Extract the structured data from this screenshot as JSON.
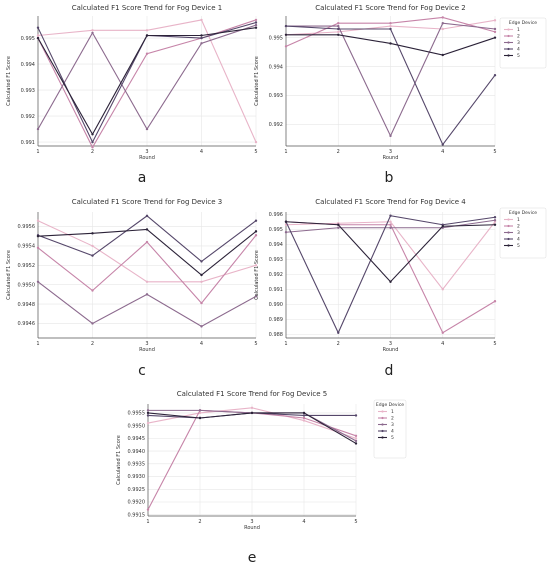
{
  "chart_data": [
    {
      "type": "line",
      "letter": "a",
      "title": "Calculated F1 Score Trend for Fog Device 1",
      "xlabel": "Round",
      "ylabel": "Calculated F1 Score",
      "x": [
        1,
        2,
        3,
        4,
        5
      ],
      "ylim": [
        0.99085,
        0.99585
      ],
      "yticks": [
        "0.991",
        "0.992",
        "0.993",
        "0.994",
        "0.995"
      ],
      "yticks_values": [
        0.991,
        0.992,
        0.993,
        0.994,
        0.995
      ],
      "grid": true,
      "legend": null,
      "series": [
        {
          "values": [
            0.9951,
            0.9953,
            0.9953,
            0.9957,
            0.991
          ],
          "color": "#e8b4c8"
        },
        {
          "values": [
            0.995,
            0.9908,
            0.9944,
            0.995,
            0.9957
          ],
          "color": "#c684a8"
        },
        {
          "values": [
            0.9915,
            0.9952,
            0.9915,
            0.9948,
            0.9955
          ],
          "color": "#8c6a8e"
        },
        {
          "values": [
            0.9954,
            0.991,
            0.9951,
            0.995,
            0.9956
          ],
          "color": "#55476a"
        },
        {
          "values": [
            0.995,
            0.9913,
            0.9951,
            0.9951,
            0.9954
          ],
          "color": "#2b2238"
        }
      ]
    },
    {
      "type": "line",
      "letter": "b",
      "title": "Calculated F1 Score Trend for Fog Device 2",
      "xlabel": "Round",
      "ylabel": "Calculated F1 Score",
      "x": [
        1,
        2,
        3,
        4,
        5
      ],
      "ylim": [
        0.99125,
        0.99575
      ],
      "yticks": [
        "0.992",
        "0.993",
        "0.994",
        "0.995"
      ],
      "yticks_values": [
        0.992,
        0.993,
        0.994,
        0.995
      ],
      "grid": true,
      "legend": {
        "title": "Edge Device",
        "entries": [
          "1",
          "2",
          "3",
          "4",
          "5"
        ],
        "position": "outside-right"
      },
      "series": [
        {
          "name": "1",
          "values": [
            0.9951,
            0.9952,
            0.9954,
            0.9953,
            0.9956
          ],
          "color": "#e8b4c8"
        },
        {
          "name": "2",
          "values": [
            0.9947,
            0.9955,
            0.9955,
            0.9957,
            0.9952
          ],
          "color": "#c684a8"
        },
        {
          "name": "3",
          "values": [
            0.9954,
            0.9954,
            0.9916,
            0.9955,
            0.9953
          ],
          "color": "#8c6a8e"
        },
        {
          "name": "4",
          "values": [
            0.9954,
            0.9953,
            0.9953,
            0.9913,
            0.9937
          ],
          "color": "#55476a"
        },
        {
          "name": "5",
          "values": [
            0.9951,
            0.9951,
            0.9948,
            0.9944,
            0.995
          ],
          "color": "#2b2238"
        }
      ]
    },
    {
      "type": "line",
      "letter": "c",
      "title": "Calculated F1 Score Trend for Fog Device 3",
      "xlabel": "Round",
      "ylabel": "Calculated F1 Score",
      "x": [
        1,
        2,
        3,
        4,
        5
      ],
      "ylim": [
        0.99445,
        0.99575
      ],
      "yticks": [
        "0.9946",
        "0.9948",
        "0.9950",
        "0.9952",
        "0.9954",
        "0.9956"
      ],
      "yticks_values": [
        0.9946,
        0.9948,
        0.995,
        0.9952,
        0.9954,
        0.9956
      ],
      "grid": true,
      "legend": null,
      "series": [
        {
          "values": [
            0.99566,
            0.9954,
            0.99503,
            0.99503,
            0.9952
          ],
          "color": "#e8b4c8"
        },
        {
          "values": [
            0.99538,
            0.99494,
            0.99544,
            0.99481,
            0.99551
          ],
          "color": "#c684a8"
        },
        {
          "values": [
            0.99503,
            0.9946,
            0.9949,
            0.99457,
            0.99488
          ],
          "color": "#8c6a8e"
        },
        {
          "values": [
            0.99551,
            0.9953,
            0.99571,
            0.99524,
            0.99566
          ],
          "color": "#55476a"
        },
        {
          "values": [
            0.9955,
            0.99553,
            0.99557,
            0.9951,
            0.99555
          ],
          "color": "#2b2238"
        }
      ]
    },
    {
      "type": "line",
      "letter": "d",
      "title": "Calculated F1 Score Trend for Fog Device 4",
      "xlabel": "Round",
      "ylabel": "Calculated F1 Score",
      "x": [
        1,
        2,
        3,
        4,
        5
      ],
      "ylim": [
        0.98775,
        0.99615
      ],
      "yticks": [
        "0.988",
        "0.989",
        "0.990",
        "0.991",
        "0.992",
        "0.993",
        "0.994",
        "0.995",
        "0.996"
      ],
      "yticks_values": [
        0.988,
        0.989,
        0.99,
        0.991,
        0.992,
        0.993,
        0.994,
        0.995,
        0.996
      ],
      "grid": true,
      "legend": {
        "title": "Edge Device",
        "entries": [
          "1",
          "2",
          "3",
          "4",
          "5"
        ],
        "position": "outside-right"
      },
      "series": [
        {
          "name": "1",
          "values": [
            0.9953,
            0.9954,
            0.9955,
            0.991,
            0.9955
          ],
          "color": "#e8b4c8"
        },
        {
          "name": "2",
          "values": [
            0.9955,
            0.9953,
            0.9953,
            0.9881,
            0.9902
          ],
          "color": "#c684a8"
        },
        {
          "name": "3",
          "values": [
            0.9948,
            0.9951,
            0.9951,
            0.9951,
            0.9956
          ],
          "color": "#8c6a8e"
        },
        {
          "name": "4",
          "values": [
            0.9955,
            0.9881,
            0.9959,
            0.9953,
            0.9958
          ],
          "color": "#55476a"
        },
        {
          "name": "5",
          "values": [
            0.9955,
            0.9953,
            0.9915,
            0.9952,
            0.9953
          ],
          "color": "#2b2238"
        }
      ]
    },
    {
      "type": "line",
      "letter": "e",
      "title": "Calculated F1 Score Trend for Fog Device 5",
      "xlabel": "Round",
      "ylabel": "Calculated F1 Score",
      "x": [
        1,
        2,
        3,
        4,
        5
      ],
      "ylim": [
        0.99145,
        0.99585
      ],
      "yticks": [
        "0.9915",
        "0.9920",
        "0.9925",
        "0.9930",
        "0.9935",
        "0.9940",
        "0.9945",
        "0.9950",
        "0.9955"
      ],
      "yticks_values": [
        0.9915,
        0.992,
        0.9925,
        0.993,
        0.9935,
        0.994,
        0.9945,
        0.995,
        0.9955
      ],
      "grid": true,
      "legend": {
        "title": "Edge Device",
        "entries": [
          "1",
          "2",
          "3",
          "4",
          "5"
        ],
        "position": "upper-right"
      },
      "series": [
        {
          "name": "1",
          "values": [
            0.9951,
            0.9955,
            0.9957,
            0.9952,
            0.9945
          ],
          "color": "#e8b4c8"
        },
        {
          "name": "2",
          "values": [
            0.9917,
            0.9956,
            0.9955,
            0.9953,
            0.9946
          ],
          "color": "#c684a8"
        },
        {
          "name": "3",
          "values": [
            0.9956,
            0.9956,
            0.9955,
            0.9955,
            0.9944
          ],
          "color": "#8c6a8e"
        },
        {
          "name": "4",
          "values": [
            0.9954,
            0.9953,
            0.9955,
            0.9954,
            0.9954
          ],
          "color": "#55476a"
        },
        {
          "name": "5",
          "values": [
            0.9955,
            0.9953,
            0.9955,
            0.9955,
            0.9943
          ],
          "color": "#2b2238"
        }
      ]
    }
  ]
}
